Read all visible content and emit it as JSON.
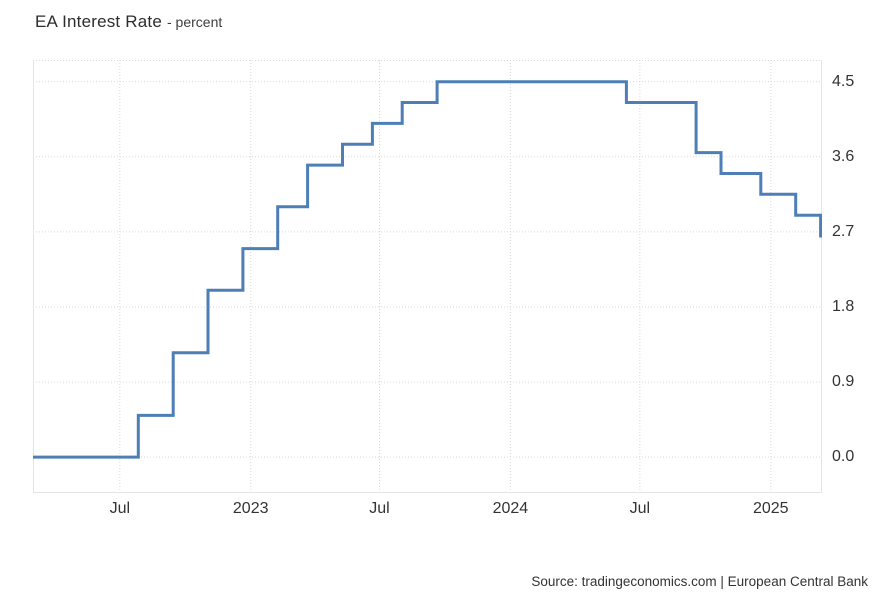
{
  "header": {
    "title": "EA Interest Rate",
    "subtitle": "- percent"
  },
  "footer": {
    "source": "Source: tradingeconomics.com | European Central Bank"
  },
  "chart_data": {
    "type": "line",
    "subtype": "step",
    "title": "EA Interest Rate",
    "ylabel": "percent",
    "xlabel": "",
    "grid": true,
    "legend_position": "none",
    "x_domain": [
      "2022-03-01",
      "2025-03-14"
    ],
    "ylim": [
      -0.43,
      4.76
    ],
    "colors": {
      "line": "#4d7eb5",
      "grid": "#d9d9d9",
      "border": "#e4e4e4",
      "text": "#333333"
    },
    "yticks": [
      {
        "label": "4.5",
        "value": 4.5
      },
      {
        "label": "3.6",
        "value": 3.6
      },
      {
        "label": "2.7",
        "value": 2.7
      },
      {
        "label": "1.8",
        "value": 1.8
      },
      {
        "label": "0.9",
        "value": 0.9
      },
      {
        "label": "0.0",
        "value": 0.0
      }
    ],
    "xticks": [
      {
        "label": "Jul",
        "date": "2022-07-01"
      },
      {
        "label": "2023",
        "date": "2023-01-01"
      },
      {
        "label": "Jul",
        "date": "2023-07-01"
      },
      {
        "label": "2024",
        "date": "2024-01-01"
      },
      {
        "label": "Jul",
        "date": "2024-07-01"
      },
      {
        "label": "2025",
        "date": "2025-01-01"
      }
    ],
    "series": [
      {
        "name": "EA Interest Rate",
        "points": [
          {
            "date": "2022-03-01",
            "value": 0.0
          },
          {
            "date": "2022-07-27",
            "value": 0.5
          },
          {
            "date": "2022-09-14",
            "value": 1.25
          },
          {
            "date": "2022-11-02",
            "value": 2.0
          },
          {
            "date": "2022-12-21",
            "value": 2.5
          },
          {
            "date": "2023-02-08",
            "value": 3.0
          },
          {
            "date": "2023-03-22",
            "value": 3.5
          },
          {
            "date": "2023-05-10",
            "value": 3.75
          },
          {
            "date": "2023-06-21",
            "value": 4.0
          },
          {
            "date": "2023-08-02",
            "value": 4.25
          },
          {
            "date": "2023-09-20",
            "value": 4.5
          },
          {
            "date": "2024-06-12",
            "value": 4.25
          },
          {
            "date": "2024-09-18",
            "value": 3.65
          },
          {
            "date": "2024-10-23",
            "value": 3.4
          },
          {
            "date": "2024-12-18",
            "value": 3.15
          },
          {
            "date": "2025-02-05",
            "value": 2.9
          },
          {
            "date": "2025-03-12",
            "value": 2.65
          }
        ]
      }
    ]
  }
}
